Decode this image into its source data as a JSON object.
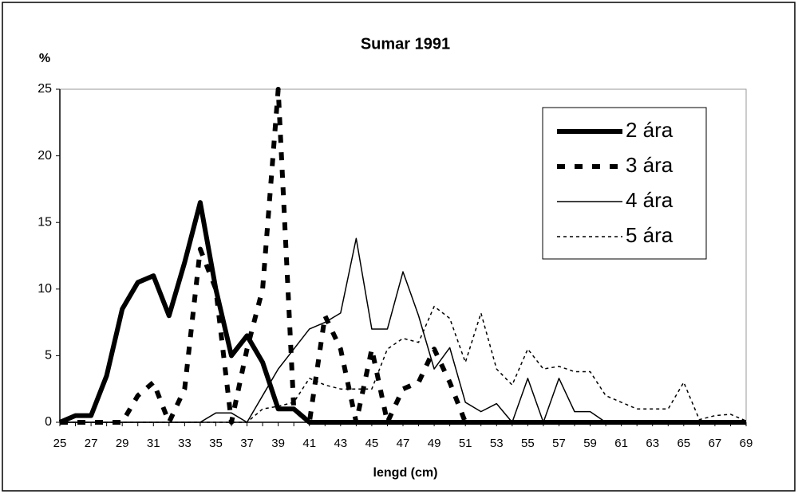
{
  "chart_data": {
    "type": "line",
    "title": "Sumar 1991",
    "ylabel": "%",
    "xlabel": "lengd (cm)",
    "x": [
      25,
      26,
      27,
      28,
      29,
      30,
      31,
      32,
      33,
      34,
      35,
      36,
      37,
      38,
      39,
      40,
      41,
      42,
      43,
      44,
      45,
      46,
      47,
      48,
      49,
      50,
      51,
      52,
      53,
      54,
      55,
      56,
      57,
      58,
      59,
      60,
      61,
      62,
      63,
      64,
      65,
      66,
      67,
      68,
      69
    ],
    "xlim": [
      25,
      69
    ],
    "xticks": [
      25,
      27,
      29,
      31,
      33,
      35,
      37,
      39,
      41,
      43,
      45,
      47,
      49,
      51,
      53,
      55,
      57,
      59,
      61,
      63,
      65,
      67,
      69
    ],
    "ylim": [
      0,
      25
    ],
    "yticks": [
      0,
      5,
      10,
      15,
      20,
      25
    ],
    "legend": "upper right",
    "series": [
      {
        "name": "2 ára",
        "color": "#000000",
        "dash": "solid",
        "line_width": 6,
        "values": [
          0,
          0.5,
          0.5,
          3.5,
          8.5,
          10.5,
          11,
          8,
          12,
          16.5,
          10,
          5,
          6.5,
          4.5,
          1,
          1,
          0,
          0,
          0,
          0,
          0,
          0,
          0,
          0,
          0,
          0,
          0,
          0,
          0,
          0,
          0,
          0,
          0,
          0,
          0,
          0,
          0,
          0,
          0,
          0,
          0,
          0,
          0,
          0,
          0
        ]
      },
      {
        "name": "3 ára",
        "color": "#000000",
        "dash": "dashed",
        "line_width": 6,
        "values": [
          0,
          0,
          0,
          0,
          0,
          2,
          3,
          0,
          2.5,
          13,
          10,
          0,
          5.5,
          10,
          25,
          1,
          0,
          8,
          5.5,
          0,
          5.5,
          0,
          2.5,
          3,
          5.5,
          3,
          0,
          0,
          0,
          0,
          0,
          0,
          0,
          0,
          0,
          0,
          0,
          0,
          0,
          0,
          0,
          0,
          0,
          0,
          0
        ]
      },
      {
        "name": "4 ára",
        "color": "#000000",
        "dash": "solid",
        "line_width": 1.5,
        "values": [
          0,
          0,
          0,
          0,
          0,
          0,
          0,
          0,
          0,
          0,
          0.7,
          0.7,
          0,
          2,
          4,
          5.5,
          7,
          7.5,
          8.2,
          13.8,
          7,
          7,
          11.3,
          8,
          4,
          5.6,
          1.5,
          0.8,
          1.4,
          0,
          3.3,
          0,
          3.3,
          0.8,
          0.8,
          0,
          0,
          0,
          0,
          0,
          0,
          0,
          0,
          0,
          0
        ]
      },
      {
        "name": "5 ára",
        "color": "#000000",
        "dash": "dotted",
        "line_width": 1.5,
        "values": [
          0,
          0,
          0,
          0,
          0,
          0,
          0,
          0,
          0,
          0,
          0,
          0,
          0,
          1,
          1.2,
          1.5,
          3.3,
          2.8,
          2.5,
          2.5,
          2.5,
          5.5,
          6.3,
          6,
          8.7,
          7.8,
          4.5,
          8.2,
          4,
          2.8,
          5.5,
          4,
          4.2,
          3.8,
          3.8,
          2,
          1.5,
          1,
          1,
          1,
          3,
          0.2,
          0.5,
          0.6,
          0.1
        ]
      }
    ]
  }
}
